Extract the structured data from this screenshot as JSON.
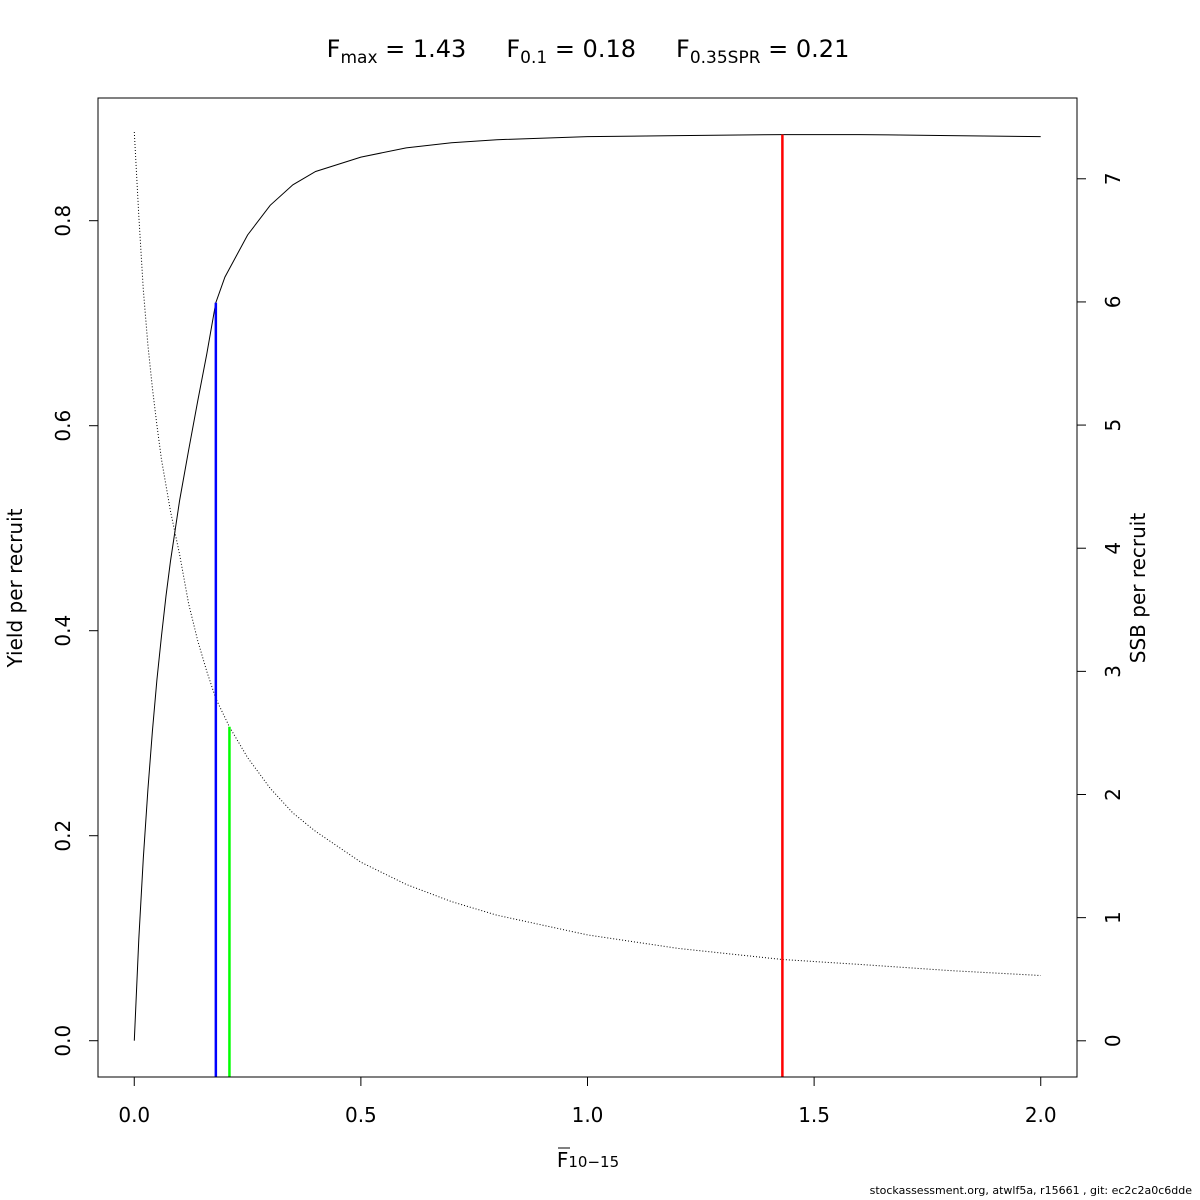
{
  "footer": "stockassessment.org, atwlf5a, r15661 , git: ec2c2a0c6dde",
  "chart_data": {
    "type": "line",
    "title_parts": [
      {
        "base": "F",
        "sub": "max",
        "rest": " = 1.43"
      },
      {
        "base": "F",
        "sub": "0.1",
        "rest": " = 0.18"
      },
      {
        "base": "F",
        "sub": "0.35SPR",
        "rest": " = 0.21"
      }
    ],
    "xlabel": {
      "base": "F",
      "sub": "10−15"
    },
    "ylabel_left": "Yield per recruit",
    "ylabel_right": "SSB per recruit",
    "xlim": [
      -0.08,
      2.08
    ],
    "ylim_left": [
      -0.0354,
      0.9197
    ],
    "ylim_right": [
      -0.294,
      7.656
    ],
    "x_ticks": [
      0.0,
      0.5,
      1.0,
      1.5,
      2.0
    ],
    "x_tick_labels": [
      "0.0",
      "0.5",
      "1.0",
      "1.5",
      "2.0"
    ],
    "y_left_ticks": [
      0.0,
      0.2,
      0.4,
      0.6,
      0.8
    ],
    "y_left_tick_labels": [
      "0.0",
      "0.2",
      "0.4",
      "0.6",
      "0.8"
    ],
    "y_right_ticks": [
      0,
      1,
      2,
      3,
      4,
      5,
      6,
      7
    ],
    "y_right_tick_labels": [
      "0",
      "1",
      "2",
      "3",
      "4",
      "5",
      "6",
      "7"
    ],
    "grid": false,
    "series": [
      {
        "key": "yield",
        "axis": "left",
        "style": "solid",
        "color": "#000000",
        "points": [
          [
            0.0,
            0.0
          ],
          [
            0.01,
            0.099
          ],
          [
            0.02,
            0.178
          ],
          [
            0.03,
            0.245
          ],
          [
            0.04,
            0.302
          ],
          [
            0.05,
            0.352
          ],
          [
            0.06,
            0.395
          ],
          [
            0.07,
            0.434
          ],
          [
            0.08,
            0.468
          ],
          [
            0.1,
            0.527
          ],
          [
            0.12,
            0.576
          ],
          [
            0.14,
            0.624
          ],
          [
            0.16,
            0.67
          ],
          [
            0.18,
            0.72
          ],
          [
            0.2,
            0.745
          ],
          [
            0.25,
            0.786
          ],
          [
            0.3,
            0.815
          ],
          [
            0.35,
            0.835
          ],
          [
            0.4,
            0.848
          ],
          [
            0.5,
            0.862
          ],
          [
            0.6,
            0.871
          ],
          [
            0.7,
            0.876
          ],
          [
            0.8,
            0.879
          ],
          [
            1.0,
            0.882
          ],
          [
            1.2,
            0.883
          ],
          [
            1.43,
            0.884
          ],
          [
            1.6,
            0.884
          ],
          [
            1.8,
            0.883
          ],
          [
            2.0,
            0.882
          ]
        ]
      },
      {
        "key": "ssb",
        "axis": "right",
        "style": "dotted",
        "color": "#000000",
        "points": [
          [
            0.0,
            7.38
          ],
          [
            0.01,
            6.7
          ],
          [
            0.02,
            6.1
          ],
          [
            0.03,
            5.65
          ],
          [
            0.04,
            5.3
          ],
          [
            0.05,
            5.0
          ],
          [
            0.06,
            4.72
          ],
          [
            0.08,
            4.3
          ],
          [
            0.1,
            3.95
          ],
          [
            0.12,
            3.55
          ],
          [
            0.14,
            3.25
          ],
          [
            0.16,
            3.0
          ],
          [
            0.18,
            2.78
          ],
          [
            0.21,
            2.55
          ],
          [
            0.25,
            2.3
          ],
          [
            0.3,
            2.05
          ],
          [
            0.35,
            1.85
          ],
          [
            0.4,
            1.7
          ],
          [
            0.5,
            1.45
          ],
          [
            0.6,
            1.27
          ],
          [
            0.7,
            1.13
          ],
          [
            0.8,
            1.02
          ],
          [
            1.0,
            0.86
          ],
          [
            1.2,
            0.75
          ],
          [
            1.43,
            0.66
          ],
          [
            1.6,
            0.62
          ],
          [
            1.8,
            0.57
          ],
          [
            2.0,
            0.53
          ]
        ]
      }
    ],
    "reference_lines": [
      {
        "key": "f0.1",
        "x": 0.18,
        "axis": "left",
        "y_top": 0.72,
        "color": "#0000ff"
      },
      {
        "key": "f0.35spr",
        "x": 0.21,
        "axis": "right",
        "y_top": 2.55,
        "color": "#00ff00"
      },
      {
        "key": "fmax",
        "x": 1.43,
        "axis": "left",
        "y_top": 0.884,
        "color": "#ff0000"
      }
    ]
  }
}
